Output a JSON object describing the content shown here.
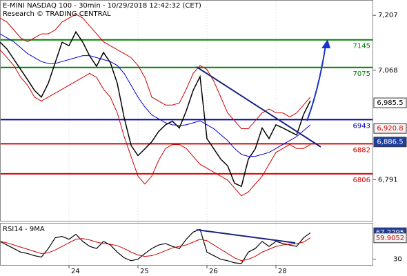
{
  "chart_data": {
    "type": "line",
    "title": "E-MINI NASDAQ 100 - 30min - 10/29/2018 12:42:32 (CET)",
    "subtitle": "Research © TRADING CENTRAL",
    "x": [
      0,
      1,
      2,
      3,
      4,
      5,
      6,
      7,
      8,
      9,
      10,
      11,
      12,
      13,
      14,
      15,
      16,
      17,
      18,
      19,
      20,
      21,
      22,
      23,
      24,
      25,
      26,
      27,
      28,
      29,
      30,
      31,
      32,
      33,
      34,
      35,
      36,
      37,
      38,
      39,
      40,
      41,
      42,
      43,
      44,
      45
    ],
    "xlim": [
      0,
      54
    ],
    "xticks": [
      {
        "value": 10,
        "label": "24"
      },
      {
        "value": 20,
        "label": "25"
      },
      {
        "value": 30,
        "label": "26"
      },
      {
        "value": 40,
        "label": "28"
      }
    ],
    "ylim": [
      6687,
      7244
    ],
    "yticks": [
      {
        "value": 7207,
        "label": "7,207"
      },
      {
        "value": 7068,
        "label": "7,068"
      },
      {
        "value": 6791,
        "label": "6,791"
      }
    ],
    "series": [
      {
        "name": "Price",
        "color": "#000000",
        "values": [
          7139,
          7122,
          7096,
          7070,
          7044,
          7017,
          7000,
          7035,
          7087,
          7139,
          7130,
          7165,
          7139,
          7104,
          7078,
          7113,
          7087,
          7035,
          6948,
          6878,
          6852,
          6869,
          6887,
          6913,
          6930,
          6939,
          6922,
          6965,
          7017,
          7052,
          6895,
          6869,
          6843,
          6826,
          6782,
          6774,
          6843,
          6869,
          6922,
          6895,
          6930,
          6922,
          6913,
          6904,
          6956,
          6991
        ]
      },
      {
        "name": "Moving average",
        "color": "#0000cc",
        "values": [
          7160,
          7150,
          7140,
          7125,
          7110,
          7100,
          7090,
          7085,
          7085,
          7090,
          7095,
          7100,
          7105,
          7105,
          7100,
          7095,
          7090,
          7080,
          7060,
          7030,
          7000,
          6975,
          6955,
          6945,
          6935,
          6930,
          6928,
          6930,
          6935,
          6940,
          6930,
          6920,
          6905,
          6890,
          6870,
          6855,
          6850,
          6850,
          6855,
          6860,
          6870,
          6880,
          6890,
          6900,
          6915,
          6930
        ]
      },
      {
        "name": "Upper band",
        "color": "#cc0000",
        "values": [
          7200,
          7190,
          7170,
          7150,
          7140,
          7150,
          7160,
          7160,
          7170,
          7190,
          7200,
          7210,
          7200,
          7180,
          7160,
          7140,
          7130,
          7120,
          7110,
          7100,
          7080,
          7050,
          7000,
          6990,
          6980,
          6980,
          6985,
          7020,
          7060,
          7080,
          7070,
          7040,
          7000,
          6960,
          6940,
          6920,
          6920,
          6940,
          6960,
          6970,
          6960,
          6960,
          6950,
          6960,
          6980,
          7000
        ]
      },
      {
        "name": "Lower band",
        "color": "#cc0000",
        "values": [
          7120,
          7100,
          7080,
          7050,
          7030,
          7000,
          6990,
          7000,
          7010,
          7020,
          7030,
          7040,
          7050,
          7060,
          7050,
          7020,
          7000,
          6960,
          6900,
          6850,
          6800,
          6780,
          6800,
          6840,
          6870,
          6880,
          6880,
          6870,
          6850,
          6830,
          6820,
          6810,
          6800,
          6790,
          6770,
          6750,
          6760,
          6780,
          6800,
          6830,
          6860,
          6870,
          6880,
          6870,
          6870,
          6880
        ]
      }
    ],
    "levels": [
      {
        "value": 7145,
        "color": "#008000"
      },
      {
        "value": 7075,
        "color": "#008000"
      },
      {
        "value": 6943,
        "color": "#0000aa"
      },
      {
        "value": 6882,
        "color": "#dd0000"
      },
      {
        "value": 6806,
        "color": "#dd0000"
      }
    ],
    "price_tags": [
      {
        "value": 6985.5,
        "label": "6,985.5",
        "bg": "#ffffff",
        "fg": "#000000"
      },
      {
        "value": 6920.8,
        "label": "6,920.8",
        "bg": "#f4f4f4",
        "fg": "#dd0000"
      },
      {
        "value": 6886.5,
        "label": "6,886.5",
        "bg": "#1f3f9f",
        "fg": "#ffffff"
      }
    ],
    "rsi": {
      "title": "RSI14 - 9MA",
      "ylim": [
        22,
        80
      ],
      "yticks": [
        30
      ],
      "series": [
        {
          "name": "RSI14",
          "color": "#000000",
          "values": [
            55,
            50,
            45,
            40,
            38,
            35,
            33,
            45,
            60,
            62,
            58,
            65,
            55,
            48,
            45,
            55,
            50,
            40,
            32,
            28,
            30,
            38,
            45,
            50,
            52,
            48,
            45,
            58,
            68,
            72,
            40,
            35,
            30,
            28,
            25,
            24,
            40,
            45,
            55,
            48,
            55,
            52,
            50,
            48,
            60,
            67
          ]
        },
        {
          "name": "9MA",
          "color": "#cc0000",
          "values": [
            55,
            53,
            50,
            47,
            44,
            41,
            38,
            39,
            43,
            48,
            53,
            58,
            59,
            57,
            54,
            52,
            51,
            49,
            45,
            40,
            36,
            34,
            35,
            38,
            42,
            46,
            48,
            50,
            54,
            58,
            56,
            50,
            44,
            38,
            32,
            28,
            30,
            34,
            40,
            44,
            48,
            50,
            51,
            52,
            54,
            60
          ]
        }
      ],
      "tags": [
        {
          "value": 67.2295,
          "label": "67.2295",
          "bg": "#1f3f9f",
          "fg": "#ffffff"
        },
        {
          "value": 59.9052,
          "label": "59.9052",
          "bg": "#f4f4f4",
          "fg": "#dd0000"
        }
      ]
    }
  }
}
